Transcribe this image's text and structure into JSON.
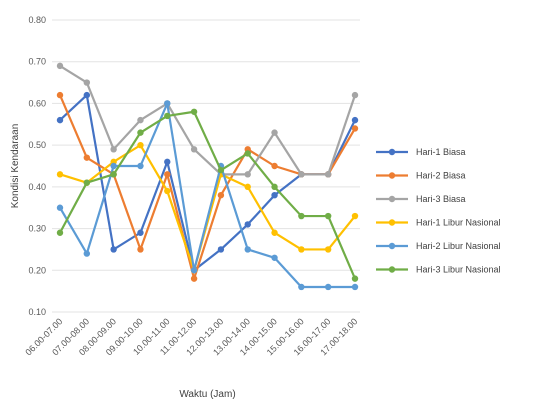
{
  "chart_data": {
    "type": "line",
    "title": "",
    "xlabel": "Waktu (Jam)",
    "ylabel": "Kondisi Kendaraan",
    "ylim": [
      0.1,
      0.8
    ],
    "yticks": [
      "0.10",
      "0.20",
      "0.30",
      "0.40",
      "0.50",
      "0.60",
      "0.70",
      "0.80"
    ],
    "grid": true,
    "legend_position": "right",
    "categories": [
      "06.00-07.00",
      "07.00-08.00",
      "08.00-09.00",
      "09.00-10.00",
      "10.00-11.00",
      "11.00-12.00",
      "12.00-13.00",
      "13.00-14.00",
      "14.00-15.00",
      "15.00-16.00",
      "16.00-17.00",
      "17.00-18.00"
    ],
    "series": [
      {
        "name": "Hari-1 Biasa",
        "color": "#4472C4",
        "values": [
          0.56,
          0.62,
          0.25,
          0.29,
          0.46,
          0.2,
          0.25,
          0.31,
          0.38,
          0.43,
          0.43,
          0.56
        ]
      },
      {
        "name": "Hari-2 Biasa",
        "color": "#ED7D31",
        "values": [
          0.62,
          0.47,
          0.43,
          0.25,
          0.43,
          0.18,
          0.38,
          0.49,
          0.45,
          0.43,
          0.43,
          0.54
        ]
      },
      {
        "name": "Hari-3 Biasa",
        "color": "#A5A5A5",
        "values": [
          0.69,
          0.65,
          0.49,
          0.56,
          0.6,
          0.49,
          0.43,
          0.43,
          0.53,
          0.43,
          0.43,
          0.62
        ]
      },
      {
        "name": "Hari-1 Libur Nasional",
        "color": "#FFC000",
        "values": [
          0.43,
          0.41,
          0.46,
          0.5,
          0.39,
          0.2,
          0.43,
          0.4,
          0.29,
          0.25,
          0.25,
          0.33
        ]
      },
      {
        "name": "Hari-2 Libur Nasional",
        "color": "#5B9BD5",
        "values": [
          0.35,
          0.24,
          0.45,
          0.45,
          0.6,
          0.2,
          0.45,
          0.25,
          0.23,
          0.16,
          0.16,
          0.16
        ]
      },
      {
        "name": "Hari-3 Libur Nasional",
        "color": "#70AD47",
        "values": [
          0.29,
          0.41,
          0.43,
          0.53,
          0.57,
          0.58,
          0.44,
          0.48,
          0.4,
          0.33,
          0.33,
          0.18
        ]
      }
    ]
  }
}
